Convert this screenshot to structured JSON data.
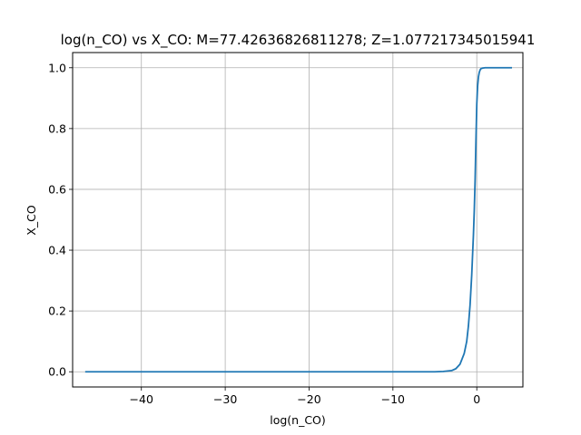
{
  "chart_data": {
    "type": "line",
    "title": "log(n_CO) vs X_CO: M=77.42636826811278; Z=1.077217345015941",
    "xlabel": "log(n_CO)",
    "ylabel": "X_CO",
    "xlim": [
      -48.2,
      5.5
    ],
    "ylim": [
      -0.05,
      1.05
    ],
    "x_ticks": [
      -40,
      -30,
      -20,
      -10,
      0
    ],
    "x_tick_labels": [
      "−40",
      "−30",
      "−20",
      "−10",
      "0"
    ],
    "y_ticks": [
      0.0,
      0.2,
      0.4,
      0.6,
      0.8,
      1.0
    ],
    "y_tick_labels": [
      "0.0",
      "0.2",
      "0.4",
      "0.6",
      "0.8",
      "1.0"
    ],
    "grid": true,
    "series": [
      {
        "color": "#1f77b4",
        "x": [
          -46.7,
          -40,
          -30,
          -20,
          -10,
          -5,
          -4,
          -3,
          -2.5,
          -2,
          -1.5,
          -1.2,
          -1.0,
          -0.8,
          -0.6,
          -0.4,
          -0.3,
          -0.2,
          -0.1,
          0,
          0.1,
          0.2,
          0.3,
          0.4,
          0.5,
          0.7,
          1.0,
          2.0,
          3.0,
          4.2
        ],
        "y": [
          0,
          0,
          0,
          0,
          0,
          0,
          0.001,
          0.004,
          0.01,
          0.025,
          0.06,
          0.1,
          0.15,
          0.22,
          0.32,
          0.45,
          0.53,
          0.63,
          0.76,
          0.88,
          0.94,
          0.97,
          0.985,
          0.993,
          0.997,
          0.999,
          1.0,
          1.0,
          1.0,
          1.0
        ]
      }
    ]
  }
}
